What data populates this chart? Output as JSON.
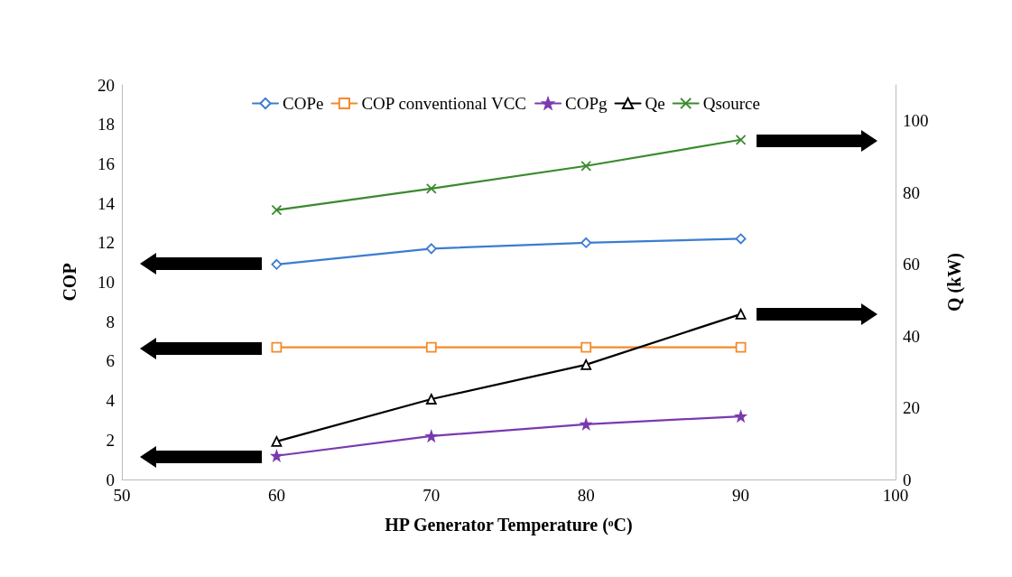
{
  "chart_data": {
    "type": "line",
    "xlabel": "HP Generator Temperature (ᵒC)",
    "ylabel": "COP",
    "y2label": "Q (kW)",
    "x": [
      60,
      70,
      80,
      90
    ],
    "series": [
      {
        "name": "COPe",
        "color": "#3b7dd0",
        "marker": "diamond",
        "values": [
          10.9,
          11.7,
          12.0,
          12.2
        ]
      },
      {
        "name": "COP conventional VCC",
        "color": "#f58a2a",
        "marker": "square",
        "values": [
          6.7,
          6.7,
          6.7,
          6.7
        ]
      },
      {
        "name": "COPg",
        "color": "#7a3ab0",
        "marker": "star",
        "values": [
          1.2,
          2.2,
          2.8,
          3.2
        ]
      },
      {
        "name": "Qe",
        "color": "#000000",
        "marker": "triangle",
        "axis": "y2",
        "values": [
          10.6,
          22.4,
          32.0,
          46.1
        ]
      },
      {
        "name": "Qsource",
        "color": "#3a8a2e",
        "marker": "cross",
        "axis": "y2",
        "values": [
          75.1,
          81.1,
          87.4,
          94.7
        ]
      }
    ],
    "xlim": [
      50,
      100
    ],
    "xticks": [
      50,
      60,
      70,
      80,
      90,
      100
    ],
    "ylim": [
      0,
      20
    ],
    "yticks": [
      0,
      2,
      4,
      6,
      8,
      10,
      12,
      14,
      16,
      18,
      20
    ],
    "y2lim": [
      0,
      110
    ],
    "y2ticks": [
      0,
      20,
      40,
      60,
      80,
      100
    ],
    "legend": "top",
    "grid": false,
    "line_style": "solid"
  }
}
